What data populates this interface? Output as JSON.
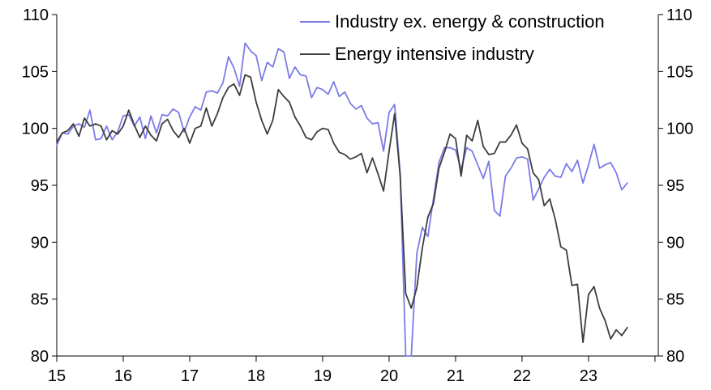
{
  "chart_data": {
    "type": "line",
    "title": "",
    "xlabel": "",
    "ylabel": "",
    "x_tick_labels": [
      "15",
      "16",
      "17",
      "18",
      "19",
      "20",
      "21",
      "22",
      "23"
    ],
    "y_ticks": [
      80,
      85,
      90,
      95,
      100,
      105,
      110
    ],
    "ylim": [
      80,
      110
    ],
    "xlim": [
      "2015-01",
      "2023-12"
    ],
    "grid": false,
    "dual_axis": true,
    "legend_position": "top-right",
    "series": [
      {
        "name": "Industry ex. energy & construction",
        "color": "#7b7be8",
        "start": "2015-01",
        "frequency": "monthly",
        "values": [
          98.5,
          99.6,
          99.5,
          100.2,
          100.4,
          100.1,
          101.6,
          99.0,
          99.1,
          100.2,
          99.0,
          99.7,
          101.1,
          101.2,
          100.2,
          101.0,
          99.1,
          101.1,
          99.6,
          101.2,
          101.1,
          101.7,
          101.4,
          99.7,
          101.0,
          101.9,
          101.6,
          103.2,
          103.3,
          103.1,
          104.0,
          106.3,
          105.3,
          103.7,
          107.5,
          106.8,
          106.4,
          104.2,
          105.8,
          105.4,
          107.0,
          106.7,
          104.4,
          105.4,
          104.7,
          104.6,
          102.7,
          103.6,
          103.4,
          103.0,
          104.1,
          102.8,
          103.2,
          102.2,
          101.7,
          102.0,
          100.9,
          100.4,
          100.5,
          98.0,
          101.4,
          102.1,
          96.0,
          79.5,
          79.5,
          89.0,
          91.3,
          90.5,
          93.8,
          97.0,
          98.3,
          98.3,
          98.1,
          96.4,
          98.3,
          98.0,
          96.8,
          95.6,
          97.1,
          92.8,
          92.3,
          95.8,
          96.5,
          97.4,
          97.5,
          97.3,
          93.7,
          94.7,
          95.7,
          96.4,
          95.8,
          95.7,
          96.9,
          96.2,
          97.2,
          95.2,
          96.8,
          98.6,
          96.5,
          96.8,
          97.0,
          96.1,
          94.6,
          95.2
        ]
      },
      {
        "name": "Energy intensive industry",
        "color": "#3d3d3d",
        "start": "2015-01",
        "frequency": "monthly",
        "values": [
          98.8,
          99.6,
          99.8,
          100.4,
          99.3,
          100.9,
          100.2,
          100.4,
          100.2,
          99.0,
          99.8,
          99.5,
          100.2,
          101.6,
          100.3,
          99.2,
          100.2,
          99.4,
          98.9,
          100.4,
          100.8,
          99.8,
          99.2,
          100.0,
          98.7,
          100.0,
          100.2,
          101.8,
          100.2,
          101.3,
          102.7,
          103.6,
          103.9,
          102.9,
          104.7,
          104.5,
          102.3,
          100.7,
          99.5,
          100.7,
          103.4,
          102.8,
          102.3,
          101.0,
          100.2,
          99.2,
          99.0,
          99.7,
          100.0,
          99.9,
          98.7,
          97.9,
          97.7,
          97.3,
          97.5,
          97.8,
          96.1,
          97.4,
          96.0,
          94.5,
          98.0,
          101.3,
          95.8,
          85.5,
          84.2,
          86.0,
          89.5,
          92.2,
          93.4,
          96.5,
          97.9,
          99.5,
          99.1,
          95.8,
          99.4,
          98.9,
          100.7,
          98.4,
          97.7,
          97.8,
          98.8,
          98.8,
          99.4,
          100.3,
          98.7,
          98.2,
          96.1,
          95.5,
          93.2,
          93.8,
          92.0,
          89.6,
          89.3,
          86.2,
          86.3,
          81.2,
          85.4,
          86.1,
          84.2,
          83.1,
          81.5,
          82.3,
          81.8,
          82.5
        ]
      }
    ]
  }
}
